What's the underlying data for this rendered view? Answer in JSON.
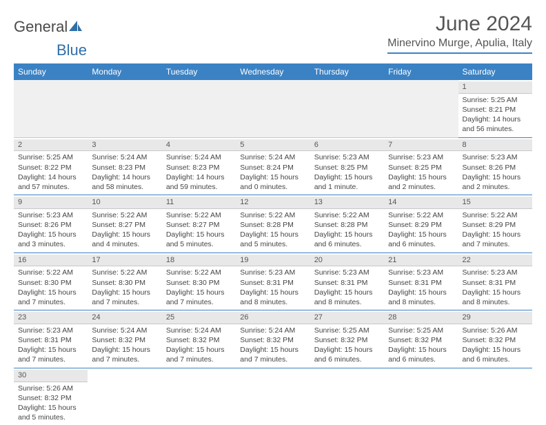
{
  "brand": {
    "part1": "General",
    "part2": "Blue"
  },
  "title": "June 2024",
  "location": "Minervino Murge, Apulia, Italy",
  "colors": {
    "header_bg": "#3b82c4",
    "header_text": "#ffffff",
    "border": "#3b82c4",
    "daynum_bg": "#e8e8e8",
    "empty_bg": "#f0f0f0",
    "text": "#444444"
  },
  "weekdays": [
    "Sunday",
    "Monday",
    "Tuesday",
    "Wednesday",
    "Thursday",
    "Friday",
    "Saturday"
  ],
  "weeks": [
    [
      null,
      null,
      null,
      null,
      null,
      null,
      {
        "n": "1",
        "sr": "Sunrise: 5:25 AM",
        "ss": "Sunset: 8:21 PM",
        "dl1": "Daylight: 14 hours",
        "dl2": "and 56 minutes."
      }
    ],
    [
      {
        "n": "2",
        "sr": "Sunrise: 5:25 AM",
        "ss": "Sunset: 8:22 PM",
        "dl1": "Daylight: 14 hours",
        "dl2": "and 57 minutes."
      },
      {
        "n": "3",
        "sr": "Sunrise: 5:24 AM",
        "ss": "Sunset: 8:23 PM",
        "dl1": "Daylight: 14 hours",
        "dl2": "and 58 minutes."
      },
      {
        "n": "4",
        "sr": "Sunrise: 5:24 AM",
        "ss": "Sunset: 8:23 PM",
        "dl1": "Daylight: 14 hours",
        "dl2": "and 59 minutes."
      },
      {
        "n": "5",
        "sr": "Sunrise: 5:24 AM",
        "ss": "Sunset: 8:24 PM",
        "dl1": "Daylight: 15 hours",
        "dl2": "and 0 minutes."
      },
      {
        "n": "6",
        "sr": "Sunrise: 5:23 AM",
        "ss": "Sunset: 8:25 PM",
        "dl1": "Daylight: 15 hours",
        "dl2": "and 1 minute."
      },
      {
        "n": "7",
        "sr": "Sunrise: 5:23 AM",
        "ss": "Sunset: 8:25 PM",
        "dl1": "Daylight: 15 hours",
        "dl2": "and 2 minutes."
      },
      {
        "n": "8",
        "sr": "Sunrise: 5:23 AM",
        "ss": "Sunset: 8:26 PM",
        "dl1": "Daylight: 15 hours",
        "dl2": "and 2 minutes."
      }
    ],
    [
      {
        "n": "9",
        "sr": "Sunrise: 5:23 AM",
        "ss": "Sunset: 8:26 PM",
        "dl1": "Daylight: 15 hours",
        "dl2": "and 3 minutes."
      },
      {
        "n": "10",
        "sr": "Sunrise: 5:22 AM",
        "ss": "Sunset: 8:27 PM",
        "dl1": "Daylight: 15 hours",
        "dl2": "and 4 minutes."
      },
      {
        "n": "11",
        "sr": "Sunrise: 5:22 AM",
        "ss": "Sunset: 8:27 PM",
        "dl1": "Daylight: 15 hours",
        "dl2": "and 5 minutes."
      },
      {
        "n": "12",
        "sr": "Sunrise: 5:22 AM",
        "ss": "Sunset: 8:28 PM",
        "dl1": "Daylight: 15 hours",
        "dl2": "and 5 minutes."
      },
      {
        "n": "13",
        "sr": "Sunrise: 5:22 AM",
        "ss": "Sunset: 8:28 PM",
        "dl1": "Daylight: 15 hours",
        "dl2": "and 6 minutes."
      },
      {
        "n": "14",
        "sr": "Sunrise: 5:22 AM",
        "ss": "Sunset: 8:29 PM",
        "dl1": "Daylight: 15 hours",
        "dl2": "and 6 minutes."
      },
      {
        "n": "15",
        "sr": "Sunrise: 5:22 AM",
        "ss": "Sunset: 8:29 PM",
        "dl1": "Daylight: 15 hours",
        "dl2": "and 7 minutes."
      }
    ],
    [
      {
        "n": "16",
        "sr": "Sunrise: 5:22 AM",
        "ss": "Sunset: 8:30 PM",
        "dl1": "Daylight: 15 hours",
        "dl2": "and 7 minutes."
      },
      {
        "n": "17",
        "sr": "Sunrise: 5:22 AM",
        "ss": "Sunset: 8:30 PM",
        "dl1": "Daylight: 15 hours",
        "dl2": "and 7 minutes."
      },
      {
        "n": "18",
        "sr": "Sunrise: 5:22 AM",
        "ss": "Sunset: 8:30 PM",
        "dl1": "Daylight: 15 hours",
        "dl2": "and 7 minutes."
      },
      {
        "n": "19",
        "sr": "Sunrise: 5:23 AM",
        "ss": "Sunset: 8:31 PM",
        "dl1": "Daylight: 15 hours",
        "dl2": "and 8 minutes."
      },
      {
        "n": "20",
        "sr": "Sunrise: 5:23 AM",
        "ss": "Sunset: 8:31 PM",
        "dl1": "Daylight: 15 hours",
        "dl2": "and 8 minutes."
      },
      {
        "n": "21",
        "sr": "Sunrise: 5:23 AM",
        "ss": "Sunset: 8:31 PM",
        "dl1": "Daylight: 15 hours",
        "dl2": "and 8 minutes."
      },
      {
        "n": "22",
        "sr": "Sunrise: 5:23 AM",
        "ss": "Sunset: 8:31 PM",
        "dl1": "Daylight: 15 hours",
        "dl2": "and 8 minutes."
      }
    ],
    [
      {
        "n": "23",
        "sr": "Sunrise: 5:23 AM",
        "ss": "Sunset: 8:31 PM",
        "dl1": "Daylight: 15 hours",
        "dl2": "and 7 minutes."
      },
      {
        "n": "24",
        "sr": "Sunrise: 5:24 AM",
        "ss": "Sunset: 8:32 PM",
        "dl1": "Daylight: 15 hours",
        "dl2": "and 7 minutes."
      },
      {
        "n": "25",
        "sr": "Sunrise: 5:24 AM",
        "ss": "Sunset: 8:32 PM",
        "dl1": "Daylight: 15 hours",
        "dl2": "and 7 minutes."
      },
      {
        "n": "26",
        "sr": "Sunrise: 5:24 AM",
        "ss": "Sunset: 8:32 PM",
        "dl1": "Daylight: 15 hours",
        "dl2": "and 7 minutes."
      },
      {
        "n": "27",
        "sr": "Sunrise: 5:25 AM",
        "ss": "Sunset: 8:32 PM",
        "dl1": "Daylight: 15 hours",
        "dl2": "and 6 minutes."
      },
      {
        "n": "28",
        "sr": "Sunrise: 5:25 AM",
        "ss": "Sunset: 8:32 PM",
        "dl1": "Daylight: 15 hours",
        "dl2": "and 6 minutes."
      },
      {
        "n": "29",
        "sr": "Sunrise: 5:26 AM",
        "ss": "Sunset: 8:32 PM",
        "dl1": "Daylight: 15 hours",
        "dl2": "and 6 minutes."
      }
    ],
    [
      {
        "n": "30",
        "sr": "Sunrise: 5:26 AM",
        "ss": "Sunset: 8:32 PM",
        "dl1": "Daylight: 15 hours",
        "dl2": "and 5 minutes."
      },
      null,
      null,
      null,
      null,
      null,
      null
    ]
  ]
}
